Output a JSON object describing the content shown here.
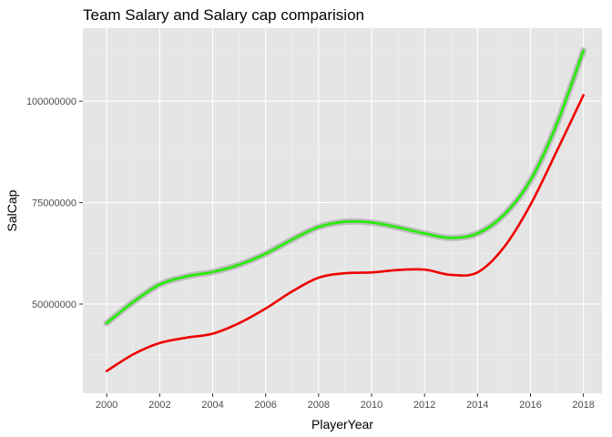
{
  "chart_data": {
    "type": "line",
    "title": "Team Salary and Salary cap comparision",
    "xlabel": "PlayerYear",
    "ylabel": "SalCap",
    "xlim": [
      1999.1,
      2018.7
    ],
    "ylim": [
      28000000,
      118000000
    ],
    "x_ticks": [
      2000,
      2002,
      2004,
      2006,
      2008,
      2010,
      2012,
      2014,
      2016,
      2018
    ],
    "x_tick_labels": [
      "2000",
      "2002",
      "2004",
      "2006",
      "2008",
      "2010",
      "2012",
      "2014",
      "2016",
      "2018"
    ],
    "y_ticks": [
      50000000,
      75000000,
      100000000
    ],
    "y_tick_labels": [
      "50000000",
      "75000000",
      "100000000"
    ],
    "grid": true,
    "legend": "none",
    "series": [
      {
        "color": "#22ee00",
        "band": true,
        "x": [
          2000,
          2001,
          2002,
          2003,
          2004,
          2005,
          2006,
          2007,
          2008,
          2009,
          2010,
          2011,
          2012,
          2013,
          2014,
          2015,
          2016,
          2017,
          2018
        ],
        "values": [
          45300000,
          50500000,
          54800000,
          56800000,
          57900000,
          59700000,
          62400000,
          65900000,
          69000000,
          70300000,
          70100000,
          68900000,
          67400000,
          66300000,
          67400000,
          72000000,
          80500000,
          94500000,
          112500000
        ]
      },
      {
        "color": "#ee0000",
        "band": false,
        "x": [
          2000,
          2001,
          2002,
          2003,
          2004,
          2005,
          2006,
          2007,
          2008,
          2009,
          2010,
          2011,
          2012,
          2013,
          2014,
          2015,
          2016,
          2017,
          2018
        ],
        "values": [
          33500000,
          37600000,
          40400000,
          41700000,
          42700000,
          45300000,
          48900000,
          53100000,
          56500000,
          57600000,
          57800000,
          58400000,
          58500000,
          57200000,
          57800000,
          64000000,
          74500000,
          87800000,
          101500000
        ]
      }
    ]
  }
}
